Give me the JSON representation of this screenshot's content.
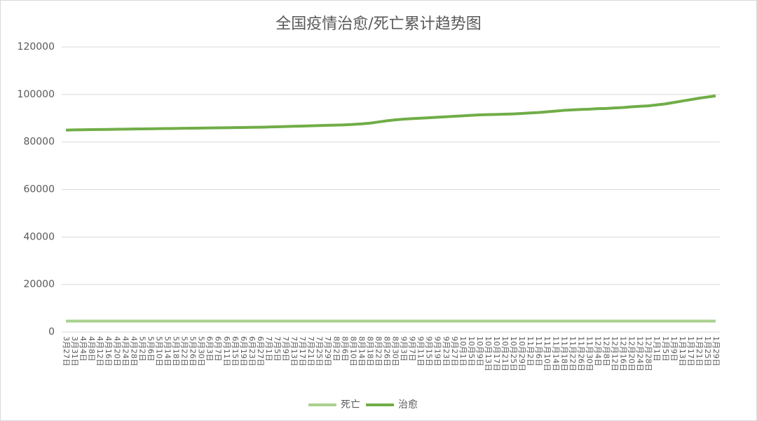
{
  "chart_data": {
    "type": "line",
    "title": "全国疫情治愈/死亡累计趋势图",
    "categories": [
      "3月27日",
      "3月31日",
      "4月4日",
      "4月8日",
      "4月12日",
      "4月16日",
      "4月20日",
      "4月24日",
      "4月28日",
      "5月2日",
      "5月6日",
      "5月10日",
      "5月14日",
      "5月18日",
      "5月22日",
      "5月26日",
      "5月30日",
      "6月3日",
      "6月7日",
      "6月11日",
      "6月15日",
      "6月19日",
      "6月23日",
      "6月27日",
      "7月1日",
      "7月5日",
      "7月9日",
      "7月13日",
      "7月17日",
      "7月21日",
      "7月25日",
      "7月29日",
      "8月2日",
      "8月6日",
      "8月10日",
      "8月14日",
      "8月18日",
      "8月22日",
      "8月26日",
      "8月30日",
      "9月3日",
      "9月7日",
      "9月11日",
      "9月15日",
      "9月19日",
      "9月23日",
      "9月27日",
      "10月1日",
      "10月5日",
      "10月9日",
      "10月13日",
      "10月17日",
      "10月21日",
      "10月25日",
      "10月29日",
      "11月2日",
      "11月6日",
      "11月10日",
      "11月14日",
      "11月18日",
      "11月22日",
      "11月26日",
      "11月30日",
      "12月4日",
      "12月8日",
      "12月12日",
      "12月16日",
      "12月20日",
      "12月24日",
      "12月28日",
      "1月1日",
      "1月5日",
      "1月9日",
      "1月13日",
      "1月17日",
      "1月21日",
      "1月25日",
      "1月29日"
    ],
    "series": [
      {
        "name": "死亡",
        "color": "#a9d18e",
        "values": [
          4600,
          4600,
          4600,
          4600,
          4600,
          4600,
          4600,
          4600,
          4600,
          4600,
          4600,
          4600,
          4600,
          4600,
          4600,
          4600,
          4600,
          4600,
          4600,
          4600,
          4600,
          4600,
          4600,
          4600,
          4600,
          4600,
          4600,
          4600,
          4600,
          4600,
          4600,
          4600,
          4600,
          4600,
          4600,
          4600,
          4600,
          4600,
          4600,
          4600,
          4600,
          4600,
          4600,
          4600,
          4600,
          4600,
          4600,
          4600,
          4600,
          4600,
          4600,
          4600,
          4600,
          4600,
          4600,
          4600,
          4600,
          4600,
          4600,
          4600,
          4600,
          4600,
          4600,
          4600,
          4600,
          4600,
          4600,
          4600,
          4600,
          4600,
          4600,
          4600,
          4600,
          4600,
          4600,
          4600,
          4600,
          4600
        ]
      },
      {
        "name": "治愈",
        "color": "#70ad47",
        "values": [
          85000,
          85100,
          85150,
          85200,
          85250,
          85300,
          85350,
          85400,
          85450,
          85500,
          85550,
          85600,
          85650,
          85700,
          85750,
          85800,
          85850,
          85900,
          85950,
          86000,
          86050,
          86100,
          86150,
          86200,
          86300,
          86400,
          86500,
          86600,
          86700,
          86800,
          86900,
          87000,
          87100,
          87200,
          87400,
          87600,
          87900,
          88400,
          88900,
          89300,
          89600,
          89800,
          90000,
          90200,
          90400,
          90600,
          90800,
          91000,
          91200,
          91400,
          91500,
          91600,
          91700,
          91800,
          92000,
          92200,
          92400,
          92700,
          93000,
          93300,
          93500,
          93700,
          93800,
          94000,
          94100,
          94300,
          94500,
          94800,
          95000,
          95200,
          95600,
          96000,
          96600,
          97200,
          97800,
          98400,
          98900,
          99400
        ]
      }
    ],
    "ylim": [
      0,
      120000
    ],
    "yticks": [
      0,
      20000,
      40000,
      60000,
      80000,
      100000,
      120000
    ],
    "grid": true,
    "legend": "bottom"
  }
}
